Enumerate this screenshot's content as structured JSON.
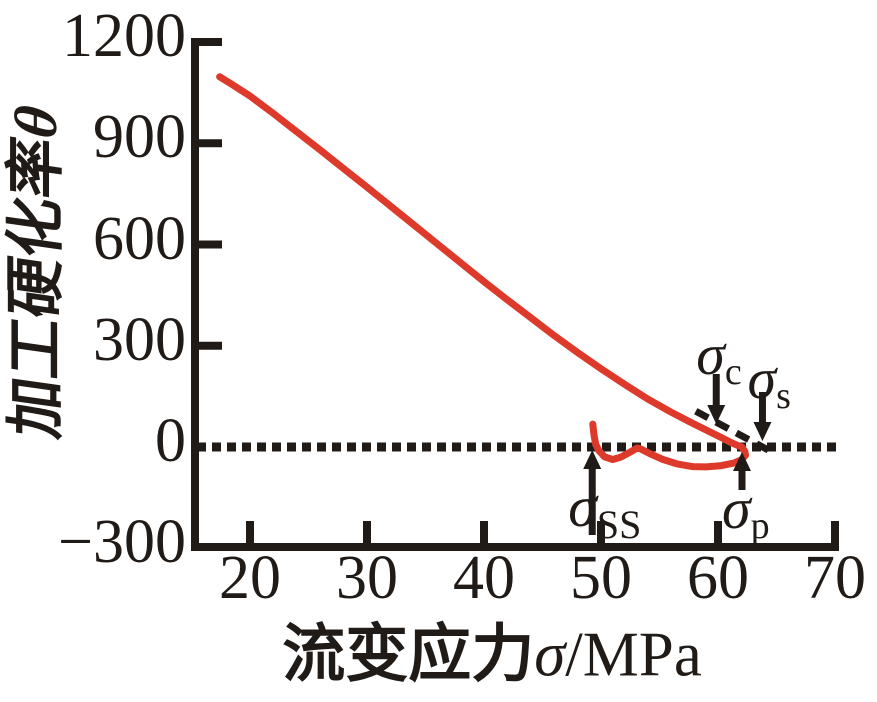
{
  "figure": {
    "background": "#ffffff",
    "curve_color": "#dd3a2b",
    "axis_color": "#211b18"
  },
  "y_axis": {
    "title_cn": "加工硬化率",
    "title_symbol": "θ",
    "tick_labels": [
      "1200",
      "900",
      "600",
      "300",
      "0",
      "−300"
    ],
    "tick_values": [
      1200,
      900,
      600,
      300,
      0,
      -300
    ]
  },
  "x_axis": {
    "title_cn": "流变应力",
    "title_symbol": "σ",
    "title_unit": "/MPa",
    "tick_labels": [
      "20",
      "30",
      "40",
      "50",
      "60",
      "70"
    ],
    "tick_values": [
      20,
      30,
      40,
      50,
      60,
      70
    ]
  },
  "annotations": {
    "sigma_c": {
      "base": "σ",
      "sub": "c",
      "sigma": 59.85
    },
    "sigma_s": {
      "base": "σ",
      "sub": "s",
      "sigma": 63.8
    },
    "sigma_p": {
      "base": "σ",
      "sub": "p",
      "sigma": 62.05
    },
    "sigma_ss": {
      "base": "σ",
      "sub": "ss",
      "sigma": 49.25
    }
  },
  "chart_data": {
    "type": "line",
    "title": "",
    "xlabel": "流变应力σ/MPa",
    "ylabel": "加工硬化率θ",
    "xlim": [
      15.3,
      70
    ],
    "ylim": [
      -300,
      1200
    ],
    "x_ticks": [
      20,
      30,
      40,
      50,
      60,
      70
    ],
    "y_ticks": [
      -300,
      0,
      300,
      600,
      900,
      1200
    ],
    "grid": false,
    "zero_dashed_line": true,
    "legend": "none",
    "series": [
      {
        "name": "work-hardening-rate-curve",
        "color": "#dd3a2b",
        "points": [
          [
            17.4,
            1097
          ],
          [
            18.3,
            1078
          ],
          [
            20,
            1040
          ],
          [
            22,
            988
          ],
          [
            24,
            934
          ],
          [
            26,
            880
          ],
          [
            28,
            825
          ],
          [
            30,
            770
          ],
          [
            32,
            714
          ],
          [
            34,
            658
          ],
          [
            36,
            602
          ],
          [
            38,
            546
          ],
          [
            40,
            490
          ],
          [
            42,
            436
          ],
          [
            44,
            383
          ],
          [
            46,
            330
          ],
          [
            48,
            280
          ],
          [
            50,
            232
          ],
          [
            52,
            186
          ],
          [
            54,
            142
          ],
          [
            56,
            103
          ],
          [
            57.5,
            76
          ],
          [
            59,
            50
          ],
          [
            60,
            33
          ],
          [
            61,
            15
          ],
          [
            61.7,
            4
          ],
          [
            62.05,
            0
          ],
          [
            62.3,
            -14
          ],
          [
            62.35,
            -25
          ],
          [
            62,
            -38
          ],
          [
            61.3,
            -48
          ],
          [
            60.3,
            -55
          ],
          [
            59,
            -59
          ],
          [
            57.8,
            -58
          ],
          [
            56.5,
            -50
          ],
          [
            55.3,
            -37
          ],
          [
            54.2,
            -20
          ],
          [
            53.4,
            -6
          ],
          [
            53.1,
            -3
          ],
          [
            52.4,
            -17
          ],
          [
            51.7,
            -30
          ],
          [
            51,
            -37
          ],
          [
            50.3,
            -29
          ],
          [
            49.8,
            -10
          ],
          [
            49.55,
            8
          ],
          [
            49.4,
            35
          ],
          [
            49.3,
            68
          ]
        ]
      }
    ],
    "tangent_line": {
      "from": [
        58.1,
        106
      ],
      "to": [
        64.3,
        -9
      ]
    },
    "critical_stresses": {
      "sigma_c": 59.85,
      "sigma_s": 63.8,
      "sigma_p": 62.05,
      "sigma_ss": 49.25
    }
  }
}
